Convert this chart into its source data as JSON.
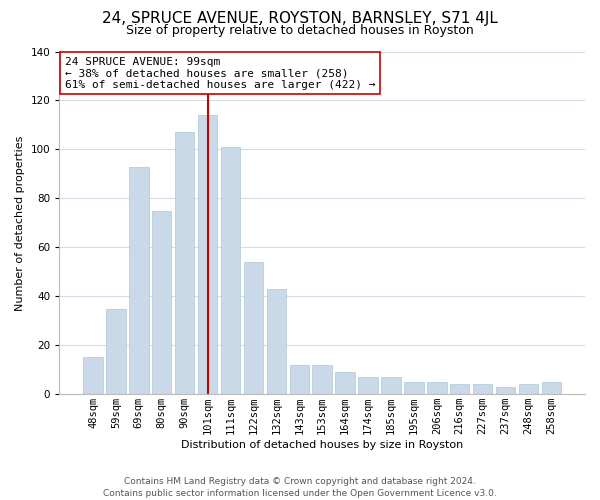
{
  "title": "24, SPRUCE AVENUE, ROYSTON, BARNSLEY, S71 4JL",
  "subtitle": "Size of property relative to detached houses in Royston",
  "xlabel": "Distribution of detached houses by size in Royston",
  "ylabel": "Number of detached properties",
  "bar_labels": [
    "48sqm",
    "59sqm",
    "69sqm",
    "80sqm",
    "90sqm",
    "101sqm",
    "111sqm",
    "122sqm",
    "132sqm",
    "143sqm",
    "153sqm",
    "164sqm",
    "174sqm",
    "185sqm",
    "195sqm",
    "206sqm",
    "216sqm",
    "227sqm",
    "237sqm",
    "248sqm",
    "258sqm"
  ],
  "bar_values": [
    15,
    35,
    93,
    75,
    107,
    114,
    101,
    54,
    43,
    12,
    12,
    9,
    7,
    7,
    5,
    5,
    4,
    4,
    3,
    4,
    5
  ],
  "bar_color": "#c9d9e8",
  "bar_edge_color": "#aec6d8",
  "highlight_line_index": 5,
  "highlight_line_color": "#cc0000",
  "annotation_text": "24 SPRUCE AVENUE: 99sqm\n← 38% of detached houses are smaller (258)\n61% of semi-detached houses are larger (422) →",
  "annotation_box_color": "#ffffff",
  "annotation_box_edge_color": "#cc0000",
  "ylim": [
    0,
    140
  ],
  "yticks": [
    0,
    20,
    40,
    60,
    80,
    100,
    120,
    140
  ],
  "footer_line1": "Contains HM Land Registry data © Crown copyright and database right 2024.",
  "footer_line2": "Contains public sector information licensed under the Open Government Licence v3.0.",
  "background_color": "#ffffff",
  "grid_color": "#d0dde8",
  "title_fontsize": 11,
  "subtitle_fontsize": 9,
  "axis_label_fontsize": 8,
  "tick_fontsize": 7.5,
  "annotation_fontsize": 8,
  "footer_fontsize": 6.5
}
